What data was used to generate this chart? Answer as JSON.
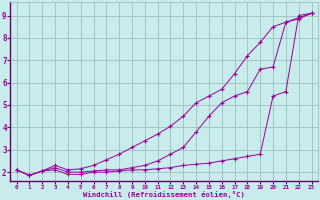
{
  "xlabel": "Windchill (Refroidissement éolien,°C)",
  "bg_color": "#c8ecec",
  "line_color": "#990099",
  "grid_color": "#9ab8b8",
  "xlim": [
    -0.5,
    23.5
  ],
  "ylim": [
    1.6,
    9.6
  ],
  "xticks": [
    0,
    1,
    2,
    3,
    4,
    5,
    6,
    7,
    8,
    9,
    10,
    11,
    12,
    13,
    14,
    15,
    16,
    17,
    18,
    19,
    20,
    21,
    22,
    23
  ],
  "yticks": [
    2,
    3,
    4,
    5,
    6,
    7,
    8,
    9
  ],
  "line1_x": [
    0,
    1,
    2,
    3,
    4,
    5,
    6,
    7,
    8,
    9,
    10,
    11,
    12,
    13,
    14,
    15,
    16,
    17,
    18,
    19,
    20,
    21,
    22,
    23
  ],
  "line1_y": [
    2.1,
    1.85,
    2.05,
    2.1,
    1.9,
    1.9,
    2.0,
    2.0,
    2.05,
    2.1,
    2.1,
    2.15,
    2.2,
    2.3,
    2.35,
    2.4,
    2.5,
    2.6,
    2.7,
    2.8,
    5.4,
    5.6,
    9.0,
    9.1
  ],
  "line2_x": [
    0,
    1,
    2,
    3,
    4,
    5,
    6,
    7,
    8,
    9,
    10,
    11,
    12,
    13,
    14,
    15,
    16,
    17,
    18,
    19,
    20,
    21,
    22,
    23
  ],
  "line2_y": [
    2.1,
    1.85,
    2.05,
    2.2,
    2.0,
    2.0,
    2.05,
    2.1,
    2.1,
    2.2,
    2.3,
    2.5,
    2.8,
    3.1,
    3.8,
    4.5,
    5.1,
    5.4,
    5.6,
    6.6,
    6.7,
    8.7,
    8.85,
    9.1
  ],
  "line3_x": [
    0,
    1,
    2,
    3,
    4,
    5,
    6,
    7,
    8,
    9,
    10,
    11,
    12,
    13,
    14,
    15,
    16,
    17,
    18,
    19,
    20,
    21,
    22,
    23
  ],
  "line3_y": [
    2.1,
    1.85,
    2.05,
    2.3,
    2.1,
    2.15,
    2.3,
    2.55,
    2.8,
    3.1,
    3.4,
    3.7,
    4.05,
    4.5,
    5.1,
    5.4,
    5.7,
    6.4,
    7.2,
    7.8,
    8.5,
    8.7,
    8.9,
    9.1
  ]
}
